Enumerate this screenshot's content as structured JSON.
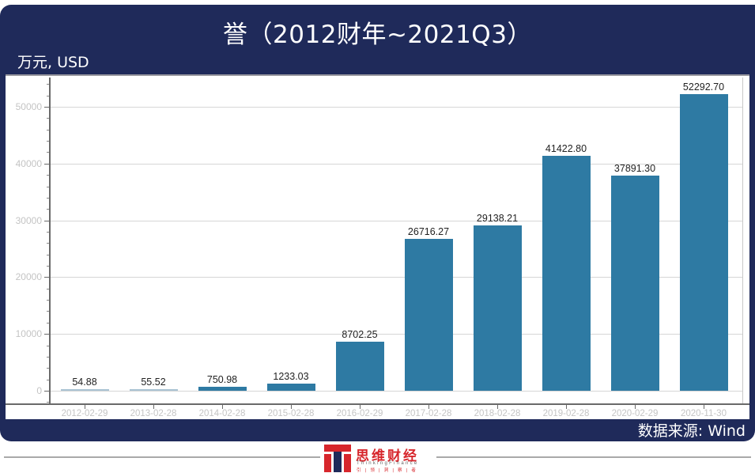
{
  "header": {
    "title": "誉（2012财年~2021Q3）",
    "unit_label": "万元, USD"
  },
  "footer": {
    "source": "数据来源: Wind",
    "logo_cn": "思维财经",
    "logo_en": "ThinkingFinance",
    "logo_sub": "引|领|洞|察|者"
  },
  "colors": {
    "panel": "#1f2a5a",
    "bar": "#2e7aa3",
    "logo_red": "#d7262c"
  },
  "chart_data": {
    "type": "bar",
    "title": "誉（2012财年~2021Q3）",
    "xlabel": "",
    "ylabel": "万元, USD",
    "categories": [
      "2012-02-29",
      "2013-02-28",
      "2014-02-28",
      "2015-02-28",
      "2016-02-29",
      "2017-02-28",
      "2018-02-28",
      "2019-02-28",
      "2020-02-29",
      "2020-11-30"
    ],
    "values": [
      54.88,
      55.52,
      750.98,
      1233.03,
      8702.25,
      26716.27,
      29138.21,
      41422.8,
      37891.3,
      52292.7
    ],
    "value_labels": [
      "54.88",
      "55.52",
      "750.98",
      "1233.03",
      "8702.25",
      "26716.27",
      "29138.21",
      "41422.80",
      "37891.30",
      "52292.70"
    ],
    "yticks": [
      "0",
      "10000",
      "20000",
      "30000",
      "40000",
      "50000"
    ],
    "ylim": [
      -2000,
      55000
    ],
    "grid": true,
    "legend": null,
    "source": "Wind"
  }
}
